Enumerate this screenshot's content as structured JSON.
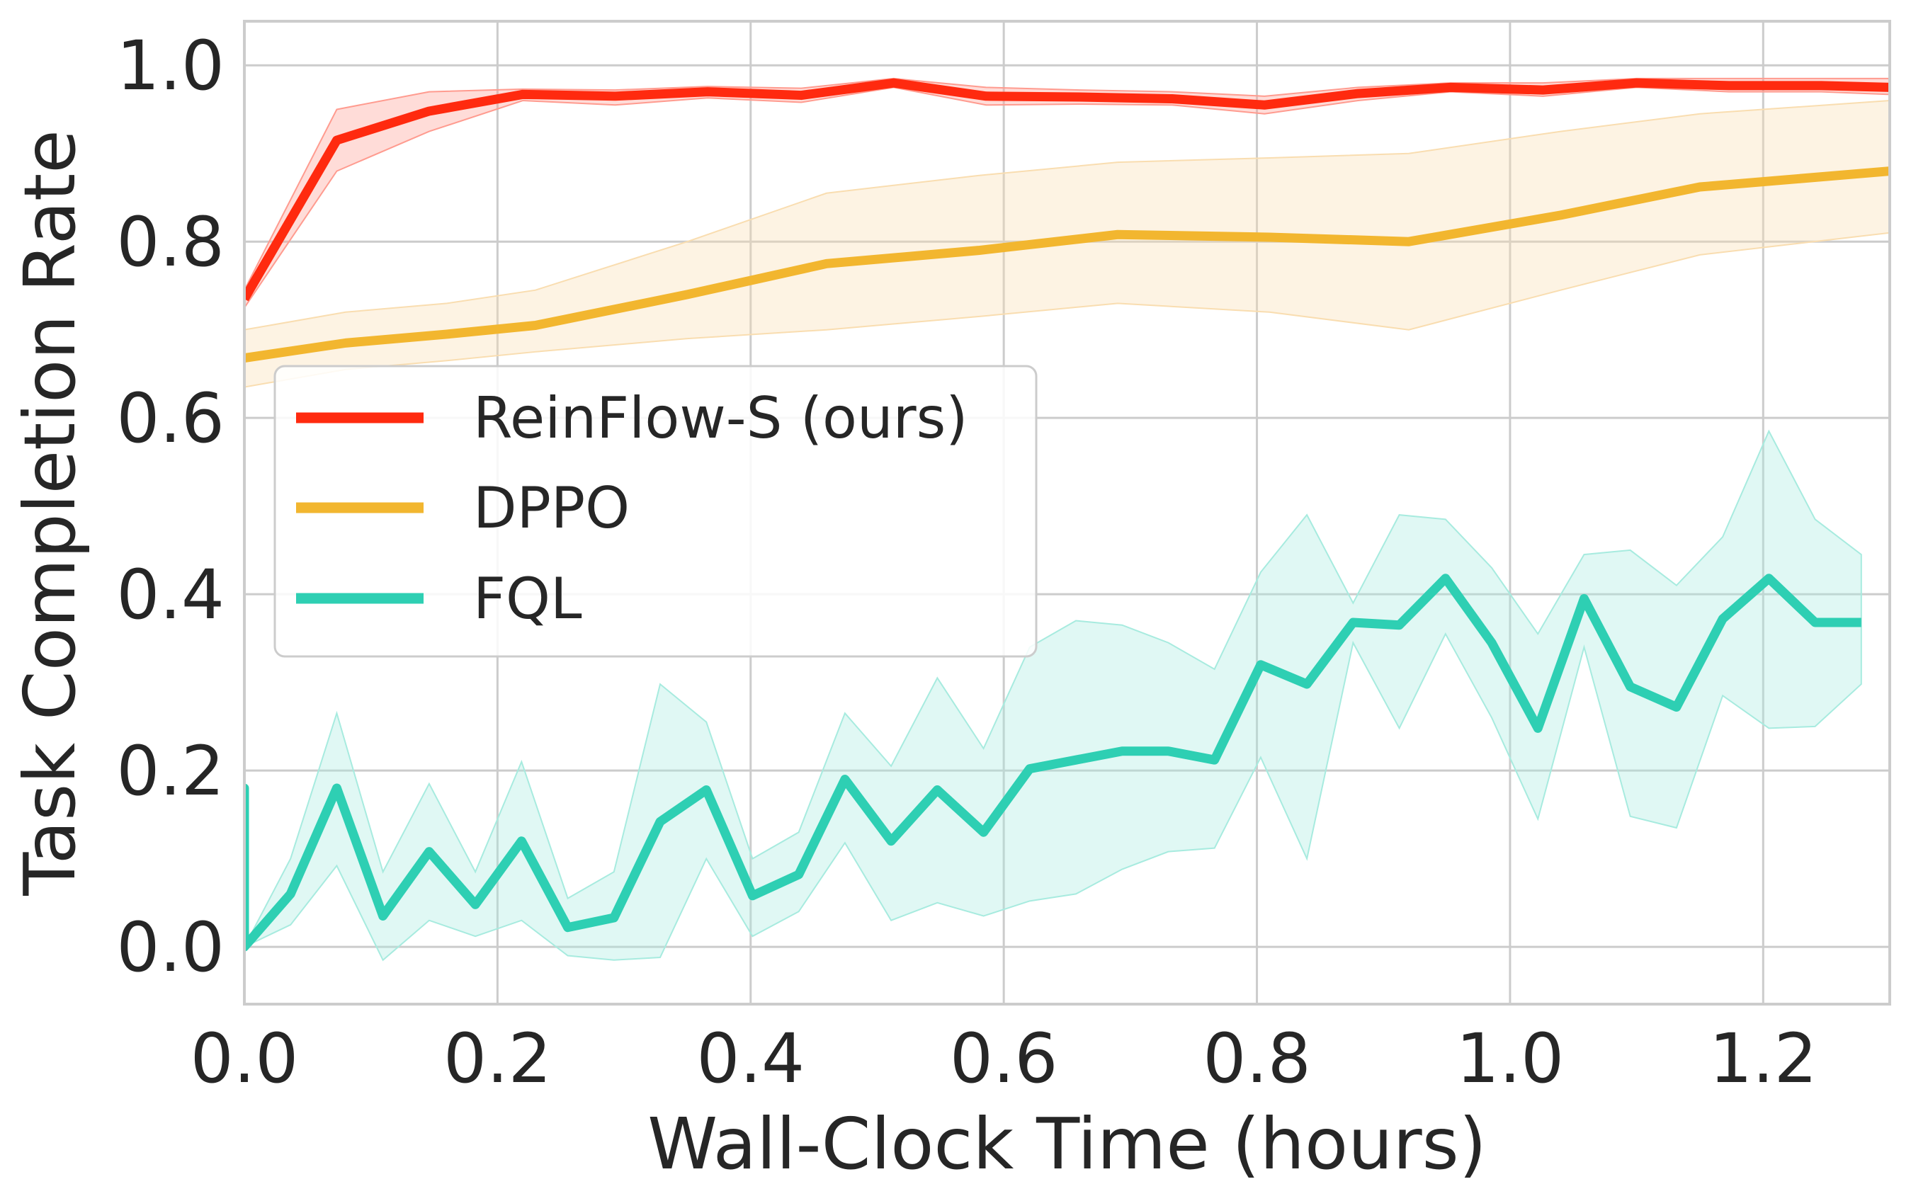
{
  "chart_data": {
    "type": "line",
    "title": "",
    "xlabel": "Wall-Clock Time (hours)",
    "ylabel": "Task Completion Rate",
    "xlim": [
      0.0,
      1.3
    ],
    "ylim": [
      -0.065,
      1.05
    ],
    "xticks": [
      0.0,
      0.2,
      0.4,
      0.6,
      0.8,
      1.0,
      1.2
    ],
    "yticks": [
      0.0,
      0.2,
      0.4,
      0.6,
      0.8,
      1.0
    ],
    "xtick_labels": [
      "0.0",
      "0.2",
      "0.4",
      "0.6",
      "0.8",
      "1.0",
      "1.2"
    ],
    "ytick_labels": [
      "0.0",
      "0.2",
      "0.4",
      "0.6",
      "0.8",
      "1.0"
    ],
    "grid": true,
    "legend_position": "center-left",
    "series": [
      {
        "name": "ReinFlow-S (ours)",
        "color": "#ff2a0f",
        "band_color": "#ff9b8f",
        "x": [
          0.0,
          0.073,
          0.146,
          0.22,
          0.293,
          0.366,
          0.44,
          0.513,
          0.586,
          0.66,
          0.733,
          0.806,
          0.88,
          0.953,
          1.026,
          1.1,
          1.173,
          1.246,
          1.3
        ],
        "y": [
          0.735,
          0.915,
          0.948,
          0.967,
          0.965,
          0.97,
          0.966,
          0.98,
          0.965,
          0.964,
          0.962,
          0.955,
          0.968,
          0.975,
          0.972,
          0.98,
          0.977,
          0.977,
          0.975
        ],
        "upper": [
          0.745,
          0.95,
          0.97,
          0.973,
          0.972,
          0.976,
          0.974,
          0.985,
          0.975,
          0.972,
          0.97,
          0.965,
          0.975,
          0.98,
          0.98,
          0.985,
          0.985,
          0.985,
          0.985
        ],
        "lower": [
          0.725,
          0.88,
          0.925,
          0.96,
          0.955,
          0.963,
          0.958,
          0.975,
          0.955,
          0.956,
          0.955,
          0.945,
          0.96,
          0.97,
          0.965,
          0.975,
          0.97,
          0.97,
          0.967
        ]
      },
      {
        "name": "DPPO",
        "color": "#f2b62f",
        "band_color": "#f9ddb0",
        "x": [
          0.0,
          0.08,
          0.16,
          0.23,
          0.35,
          0.46,
          0.58,
          0.69,
          0.81,
          0.92,
          1.04,
          1.15,
          1.3
        ],
        "y": [
          0.668,
          0.685,
          0.695,
          0.705,
          0.74,
          0.775,
          0.79,
          0.808,
          0.805,
          0.8,
          0.83,
          0.862,
          0.88
        ],
        "upper": [
          0.7,
          0.72,
          0.73,
          0.745,
          0.8,
          0.855,
          0.875,
          0.89,
          0.895,
          0.9,
          0.925,
          0.945,
          0.96
        ],
        "lower": [
          0.635,
          0.655,
          0.665,
          0.675,
          0.69,
          0.7,
          0.715,
          0.73,
          0.72,
          0.7,
          0.745,
          0.785,
          0.81
        ]
      },
      {
        "name": "FQL",
        "color": "#2ecfb3",
        "band_color": "#a7ebdf",
        "x": [
          0.0,
          0.0,
          0.0,
          0.0365,
          0.073,
          0.1095,
          0.146,
          0.1825,
          0.219,
          0.2555,
          0.292,
          0.3285,
          0.365,
          0.4015,
          0.438,
          0.4745,
          0.511,
          0.5475,
          0.584,
          0.6205,
          0.657,
          0.6935,
          0.73,
          0.7665,
          0.803,
          0.8395,
          0.876,
          0.9125,
          0.949,
          0.9855,
          1.022,
          1.0585,
          1.095,
          1.1315,
          1.168,
          1.2045,
          1.241,
          1.2775
        ],
        "y": [
          0.0,
          0.18,
          0.0,
          0.06,
          0.18,
          0.035,
          0.108,
          0.048,
          0.12,
          0.022,
          0.033,
          0.142,
          0.178,
          0.058,
          0.082,
          0.19,
          0.12,
          0.178,
          0.13,
          0.202,
          0.212,
          0.222,
          0.222,
          0.212,
          0.32,
          0.298,
          0.368,
          0.365,
          0.418,
          0.345,
          0.248,
          0.395,
          0.295,
          0.272,
          0.372,
          0.418,
          0.368,
          0.368
        ],
        "upper": [
          0.0,
          0.185,
          0.0,
          0.1,
          0.265,
          0.085,
          0.185,
          0.085,
          0.21,
          0.055,
          0.085,
          0.298,
          0.255,
          0.1,
          0.13,
          0.265,
          0.205,
          0.305,
          0.225,
          0.34,
          0.37,
          0.365,
          0.345,
          0.315,
          0.425,
          0.49,
          0.39,
          0.49,
          0.485,
          0.43,
          0.355,
          0.445,
          0.45,
          0.41,
          0.465,
          0.585,
          0.485,
          0.445
        ],
        "lower": [
          0.0,
          0.175,
          0.0,
          0.025,
          0.092,
          -0.015,
          0.03,
          0.012,
          0.03,
          -0.01,
          -0.015,
          -0.012,
          0.1,
          0.012,
          0.04,
          0.118,
          0.03,
          0.05,
          0.035,
          0.052,
          0.06,
          0.088,
          0.108,
          0.112,
          0.215,
          0.1,
          0.345,
          0.248,
          0.355,
          0.26,
          0.145,
          0.34,
          0.148,
          0.135,
          0.285,
          0.248,
          0.25,
          0.298
        ]
      }
    ]
  }
}
